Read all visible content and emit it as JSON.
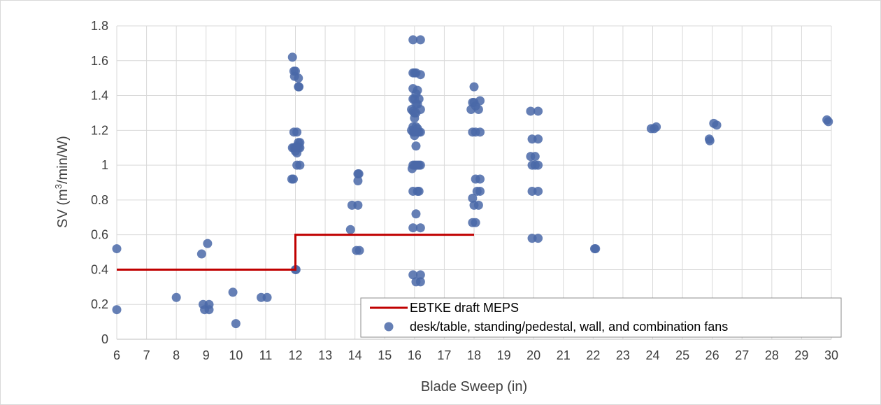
{
  "chart_data": {
    "type": "scatter",
    "xlabel": "Blade Sweep (in)",
    "ylabel_main": "SV (m",
    "ylabel_sup": "3",
    "ylabel_tail": "/min/W)",
    "xlim": [
      6,
      30
    ],
    "ylim": [
      0,
      1.8
    ],
    "x_ticks": [
      "6",
      "7",
      "8",
      "9",
      "10",
      "11",
      "12",
      "13",
      "14",
      "15",
      "16",
      "17",
      "18",
      "19",
      "20",
      "21",
      "22",
      "23",
      "24",
      "25",
      "26",
      "27",
      "28",
      "29",
      "30"
    ],
    "y_ticks": [
      "0",
      "0.2",
      "0.4",
      "0.6",
      "0.8",
      "1",
      "1.2",
      "1.4",
      "1.6",
      "1.8"
    ],
    "grid": true,
    "legend_position": "bottom-right",
    "colors": {
      "scatter": "#4a69a8",
      "line": "#c00000",
      "grid": "#d9d9d9"
    },
    "series": [
      {
        "name": "EBTKE draft MEPS",
        "kind": "step-line",
        "points": [
          [
            6,
            0.4
          ],
          [
            12,
            0.4
          ],
          [
            12,
            0.6
          ],
          [
            18,
            0.6
          ]
        ]
      },
      {
        "name": "desk/table, standing/pedestal, wall, and combination fans",
        "kind": "scatter",
        "points": [
          [
            6,
            0.52
          ],
          [
            6,
            0.17
          ],
          [
            8,
            0.24
          ],
          [
            8.85,
            0.49
          ],
          [
            9.05,
            0.55
          ],
          [
            8.9,
            0.2
          ],
          [
            9.1,
            0.2
          ],
          [
            8.95,
            0.17
          ],
          [
            9.1,
            0.17
          ],
          [
            9.9,
            0.27
          ],
          [
            10,
            0.09
          ],
          [
            10.85,
            0.24
          ],
          [
            11.05,
            0.24
          ],
          [
            11.9,
            1.62
          ],
          [
            11.95,
            1.54
          ],
          [
            12,
            1.54
          ],
          [
            11.97,
            1.51
          ],
          [
            12.1,
            1.5
          ],
          [
            12.1,
            1.45
          ],
          [
            12.12,
            1.45
          ],
          [
            11.95,
            1.19
          ],
          [
            12.05,
            1.19
          ],
          [
            12.1,
            1.13
          ],
          [
            12.15,
            1.13
          ],
          [
            11.9,
            1.1
          ],
          [
            11.95,
            1.1
          ],
          [
            12,
            1.1
          ],
          [
            12.05,
            1.11
          ],
          [
            12.1,
            1.1
          ],
          [
            12.15,
            1.1
          ],
          [
            12.0,
            1.08
          ],
          [
            12.05,
            1.07
          ],
          [
            12.05,
            1.0
          ],
          [
            12.15,
            1.0
          ],
          [
            11.88,
            0.92
          ],
          [
            11.93,
            0.92
          ],
          [
            12,
            0.4
          ],
          [
            12.02,
            0.4
          ],
          [
            13.9,
            0.77
          ],
          [
            14.1,
            0.77
          ],
          [
            14.1,
            0.95
          ],
          [
            14.13,
            0.95
          ],
          [
            14.1,
            0.91
          ],
          [
            13.85,
            0.63
          ],
          [
            14.05,
            0.51
          ],
          [
            14.15,
            0.51
          ],
          [
            15.95,
            1.72
          ],
          [
            16.2,
            1.72
          ],
          [
            15.95,
            1.53
          ],
          [
            16.0,
            1.53
          ],
          [
            16.05,
            1.53
          ],
          [
            16.2,
            1.52
          ],
          [
            15.95,
            1.44
          ],
          [
            16.1,
            1.43
          ],
          [
            16.05,
            1.41
          ],
          [
            15.95,
            1.38
          ],
          [
            16.0,
            1.38
          ],
          [
            16.15,
            1.38
          ],
          [
            16.05,
            1.35
          ],
          [
            16.1,
            1.35
          ],
          [
            15.9,
            1.32
          ],
          [
            15.95,
            1.31
          ],
          [
            16.0,
            1.3
          ],
          [
            16.05,
            1.3
          ],
          [
            16.2,
            1.32
          ],
          [
            16.0,
            1.27
          ],
          [
            15.95,
            1.22
          ],
          [
            16.05,
            1.22
          ],
          [
            16.1,
            1.21
          ],
          [
            15.9,
            1.2
          ],
          [
            15.95,
            1.19
          ],
          [
            16.0,
            1.19
          ],
          [
            16.1,
            1.19
          ],
          [
            16.15,
            1.19
          ],
          [
            16.2,
            1.19
          ],
          [
            16.0,
            1.17
          ],
          [
            16.05,
            1.11
          ],
          [
            15.95,
            1.0
          ],
          [
            16.0,
            1.0
          ],
          [
            16.05,
            1.0
          ],
          [
            16.1,
            1.0
          ],
          [
            16.15,
            1.0
          ],
          [
            16.2,
            1.0
          ],
          [
            15.92,
            0.98
          ],
          [
            15.95,
            0.85
          ],
          [
            16.1,
            0.85
          ],
          [
            16.15,
            0.85
          ],
          [
            16.05,
            0.72
          ],
          [
            15.95,
            0.64
          ],
          [
            16.2,
            0.64
          ],
          [
            15.95,
            0.37
          ],
          [
            16.2,
            0.37
          ],
          [
            16.05,
            0.33
          ],
          [
            16.2,
            0.33
          ],
          [
            18.0,
            1.45
          ],
          [
            18.2,
            1.37
          ],
          [
            17.95,
            1.36
          ],
          [
            18.0,
            1.36
          ],
          [
            18.05,
            1.34
          ],
          [
            17.9,
            1.32
          ],
          [
            18.15,
            1.32
          ],
          [
            17.95,
            1.19
          ],
          [
            18.05,
            1.19
          ],
          [
            18.2,
            1.19
          ],
          [
            18.05,
            0.92
          ],
          [
            18.2,
            0.92
          ],
          [
            18.1,
            0.85
          ],
          [
            18.2,
            0.85
          ],
          [
            17.95,
            0.81
          ],
          [
            18.0,
            0.77
          ],
          [
            18.15,
            0.77
          ],
          [
            17.95,
            0.67
          ],
          [
            18.05,
            0.67
          ],
          [
            19.9,
            1.31
          ],
          [
            20.15,
            1.31
          ],
          [
            19.95,
            1.15
          ],
          [
            20.15,
            1.15
          ],
          [
            19.9,
            1.05
          ],
          [
            20.05,
            1.05
          ],
          [
            19.95,
            1.0
          ],
          [
            20.05,
            1.0
          ],
          [
            20.15,
            1.0
          ],
          [
            19.95,
            0.85
          ],
          [
            20.15,
            0.85
          ],
          [
            19.95,
            0.58
          ],
          [
            20.15,
            0.58
          ],
          [
            22.05,
            0.52
          ],
          [
            22.08,
            0.52
          ],
          [
            23.95,
            1.21
          ],
          [
            24.05,
            1.21
          ],
          [
            24.12,
            1.22
          ],
          [
            25.9,
            1.15
          ],
          [
            25.92,
            1.14
          ],
          [
            26.05,
            1.24
          ],
          [
            26.15,
            1.23
          ],
          [
            29.85,
            1.26
          ],
          [
            29.9,
            1.25
          ]
        ]
      }
    ]
  }
}
